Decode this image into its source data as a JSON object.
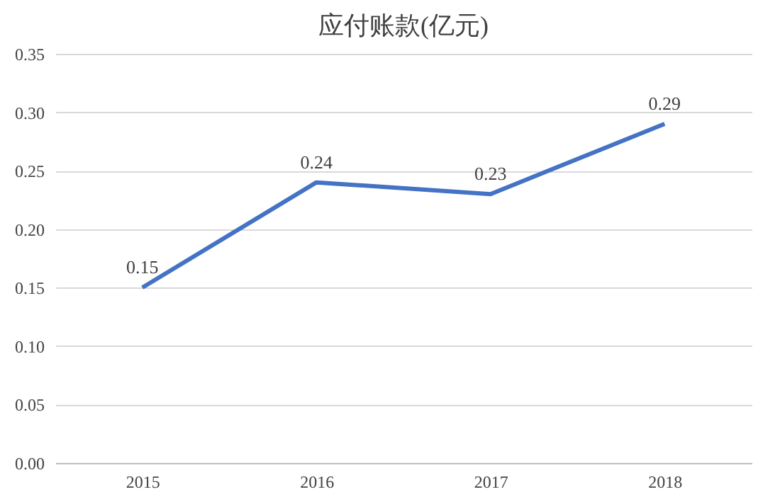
{
  "chart_data": {
    "type": "line",
    "title": "应付账款(亿元)",
    "categories": [
      "2015",
      "2016",
      "2017",
      "2018"
    ],
    "series": [
      {
        "color": "#4472c4",
        "values": [
          0.15,
          0.24,
          0.23,
          0.29
        ]
      }
    ],
    "ylim": [
      0,
      0.35
    ],
    "yticks": [
      {
        "value": 0,
        "label": "0.00"
      },
      {
        "value": 0.05,
        "label": "0.05"
      },
      {
        "value": 0.1,
        "label": "0.10"
      },
      {
        "value": 0.15,
        "label": "0.15"
      },
      {
        "value": 0.2,
        "label": "0.20"
      },
      {
        "value": 0.25,
        "label": "0.25"
      },
      {
        "value": 0.3,
        "label": "0.30"
      },
      {
        "value": 0.35,
        "label": "0.35"
      }
    ],
    "grid": "y",
    "legend": false,
    "marker": "none",
    "line_style": "solid",
    "data_labels": true
  }
}
